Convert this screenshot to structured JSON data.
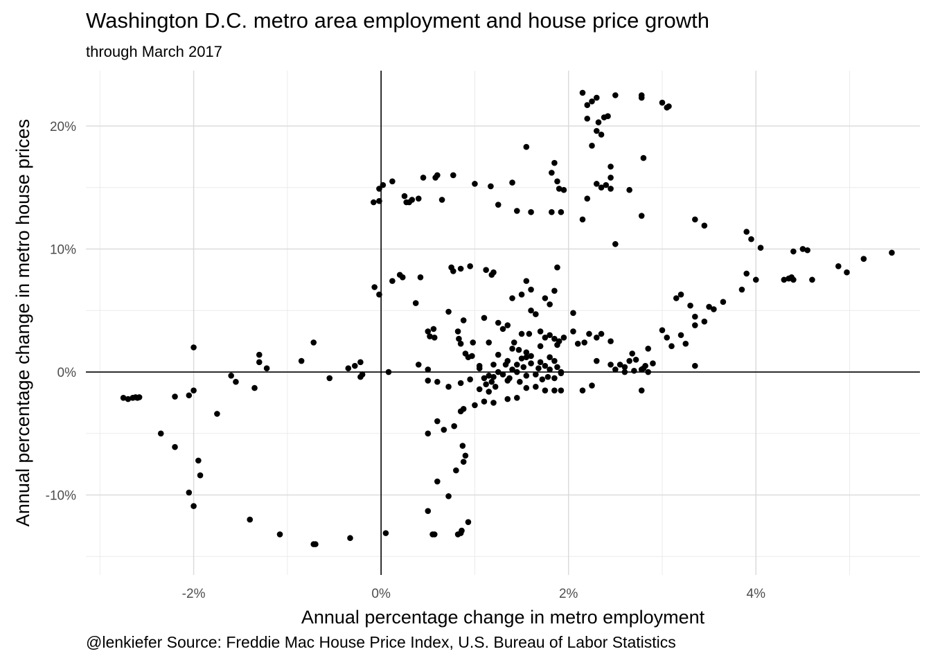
{
  "chart_data": {
    "type": "scatter",
    "title": "Washington D.C. metro area employment and house price growth",
    "subtitle": "through March 2017",
    "caption": "@lenkiefer Source: Freddie Mac House Price Index, U.S. Bureau of Labor Statistics",
    "xlabel": "Annual percentage change in metro employment",
    "ylabel": "Annual percentage change in metro house prices",
    "xlim": [
      -3.15,
      5.75
    ],
    "ylim": [
      -16.5,
      24.5
    ],
    "x_ticks": [
      -2,
      0,
      2,
      4
    ],
    "x_tick_labels": [
      "-2%",
      "0%",
      "2%",
      "4%"
    ],
    "y_ticks": [
      -10,
      0,
      10,
      20
    ],
    "y_tick_labels": [
      "-10%",
      "0%",
      "10%",
      "20%"
    ],
    "grid": true,
    "reference_lines": {
      "x": 0,
      "y": 0
    },
    "point_color": "#000000",
    "series": [
      {
        "points": [
          [
            -2.75,
            -2.1
          ],
          [
            -2.7,
            -2.2
          ],
          [
            -2.65,
            -2.1
          ],
          [
            -2.62,
            -2.05
          ],
          [
            -2.6,
            -2.1
          ],
          [
            -2.58,
            -2.05
          ],
          [
            -2.2,
            -2.0
          ],
          [
            -2.05,
            -1.9
          ],
          [
            -2.0,
            -1.5
          ],
          [
            -2.0,
            2.0
          ],
          [
            -1.75,
            -3.4
          ],
          [
            -2.35,
            -5.0
          ],
          [
            -2.2,
            -6.1
          ],
          [
            -1.95,
            -7.2
          ],
          [
            -1.93,
            -8.4
          ],
          [
            -2.05,
            -9.8
          ],
          [
            -2.0,
            -10.9
          ],
          [
            -1.4,
            -12.0
          ],
          [
            -1.08,
            -13.2
          ],
          [
            -0.72,
            -14.0
          ],
          [
            -0.7,
            -14.0
          ],
          [
            -0.33,
            -13.5
          ],
          [
            0.05,
            -13.1
          ],
          [
            0.55,
            -13.2
          ],
          [
            0.57,
            -13.2
          ],
          [
            0.82,
            -13.2
          ],
          [
            0.85,
            -13.1
          ],
          [
            0.86,
            -12.9
          ],
          [
            0.93,
            -12.2
          ],
          [
            0.5,
            -11.3
          ],
          [
            0.72,
            -10.1
          ],
          [
            0.6,
            -8.9
          ],
          [
            0.8,
            -8.0
          ],
          [
            0.88,
            -7.3
          ],
          [
            0.9,
            -6.8
          ],
          [
            0.87,
            -6.0
          ],
          [
            0.5,
            -5.0
          ],
          [
            0.6,
            -4.0
          ],
          [
            0.67,
            -4.7
          ],
          [
            0.78,
            -4.4
          ],
          [
            0.85,
            -3.2
          ],
          [
            0.88,
            -3.0
          ],
          [
            1.0,
            -2.7
          ],
          [
            1.1,
            -2.4
          ],
          [
            1.2,
            -2.5
          ],
          [
            1.35,
            -2.2
          ],
          [
            1.45,
            -2.1
          ],
          [
            1.55,
            -1.3
          ],
          [
            1.65,
            -1.2
          ],
          [
            1.75,
            -1.5
          ],
          [
            1.85,
            -1.5
          ],
          [
            1.92,
            -1.5
          ],
          [
            2.15,
            -1.5
          ],
          [
            2.25,
            -1.1
          ],
          [
            2.78,
            -1.5
          ],
          [
            -1.6,
            -0.3
          ],
          [
            -1.55,
            -0.8
          ],
          [
            -1.35,
            -1.3
          ],
          [
            -1.3,
            0.8
          ],
          [
            -1.3,
            1.4
          ],
          [
            -1.22,
            0.3
          ],
          [
            -0.85,
            0.9
          ],
          [
            -0.72,
            2.4
          ],
          [
            -0.55,
            -0.5
          ],
          [
            -0.35,
            0.3
          ],
          [
            -0.28,
            0.5
          ],
          [
            -0.22,
            0.8
          ],
          [
            -0.2,
            -0.2
          ],
          [
            -0.22,
            -0.4
          ],
          [
            0.08,
            0.0
          ],
          [
            0.4,
            0.6
          ],
          [
            0.5,
            0.2
          ],
          [
            0.5,
            -0.7
          ],
          [
            0.6,
            -0.8
          ],
          [
            0.72,
            -1.2
          ],
          [
            0.85,
            -0.9
          ],
          [
            0.95,
            -0.6
          ],
          [
            0.5,
            3.3
          ],
          [
            0.52,
            2.9
          ],
          [
            0.57,
            2.8
          ],
          [
            0.56,
            3.5
          ],
          [
            0.72,
            4.9
          ],
          [
            0.82,
            3.3
          ],
          [
            0.83,
            2.7
          ],
          [
            0.85,
            2.3
          ],
          [
            0.88,
            4.2
          ],
          [
            0.9,
            1.5
          ],
          [
            0.93,
            1.2
          ],
          [
            0.97,
            1.3
          ],
          [
            0.98,
            2.4
          ],
          [
            1.1,
            4.4
          ],
          [
            1.15,
            2.4
          ],
          [
            1.25,
            4.0
          ],
          [
            1.3,
            3.5
          ],
          [
            1.35,
            3.8
          ],
          [
            1.42,
            2.4
          ],
          [
            1.47,
            1.8
          ],
          [
            1.5,
            3.1
          ],
          [
            1.55,
            1.6
          ],
          [
            1.58,
            3.1
          ],
          [
            1.65,
            4.7
          ],
          [
            1.7,
            3.3
          ],
          [
            1.75,
            2.8
          ],
          [
            1.8,
            3.0
          ],
          [
            1.85,
            2.7
          ],
          [
            1.88,
            2.2
          ],
          [
            1.9,
            2.5
          ],
          [
            1.95,
            2.8
          ],
          [
            2.05,
            4.8
          ],
          [
            2.05,
            3.3
          ],
          [
            2.1,
            2.3
          ],
          [
            2.17,
            2.4
          ],
          [
            2.22,
            3.1
          ],
          [
            2.3,
            2.8
          ],
          [
            2.35,
            3.1
          ],
          [
            2.45,
            2.5
          ],
          [
            2.3,
            0.9
          ],
          [
            2.45,
            0.6
          ],
          [
            2.55,
            0.6
          ],
          [
            2.6,
            0.4
          ],
          [
            2.65,
            0.9
          ],
          [
            2.68,
            1.5
          ],
          [
            2.72,
            1.0
          ],
          [
            2.78,
            0.2
          ],
          [
            2.82,
            0.5
          ],
          [
            2.85,
            1.9
          ],
          [
            2.9,
            0.7
          ],
          [
            1.05,
            0.3
          ],
          [
            1.1,
            -0.5
          ],
          [
            1.12,
            -1.0
          ],
          [
            1.15,
            -0.3
          ],
          [
            1.18,
            -0.8
          ],
          [
            1.2,
            -0.4
          ],
          [
            1.22,
            -1.2
          ],
          [
            1.25,
            0.0
          ],
          [
            1.3,
            -0.2
          ],
          [
            1.33,
            0.6
          ],
          [
            1.37,
            -0.5
          ],
          [
            1.4,
            0.2
          ],
          [
            1.45,
            0.0
          ],
          [
            1.48,
            -0.8
          ],
          [
            1.52,
            0.4
          ],
          [
            1.55,
            -0.3
          ],
          [
            1.6,
            0.7
          ],
          [
            1.65,
            -0.2
          ],
          [
            1.68,
            0.3
          ],
          [
            1.72,
            -0.6
          ],
          [
            1.75,
            0.5
          ],
          [
            1.78,
            -0.4
          ],
          [
            1.8,
            0.2
          ],
          [
            1.85,
            -0.5
          ],
          [
            1.88,
            0.4
          ],
          [
            1.92,
            -0.1
          ],
          [
            1.05,
            0.5
          ],
          [
            1.2,
            0.6
          ],
          [
            1.35,
            0.9
          ],
          [
            1.5,
            1.1
          ],
          [
            1.6,
            1.3
          ],
          [
            1.7,
            0.8
          ],
          [
            1.8,
            1.2
          ],
          [
            1.85,
            0.9
          ],
          [
            1.92,
            0.0
          ],
          [
            2.5,
            0.2
          ],
          [
            2.6,
            0.0
          ],
          [
            2.7,
            0.1
          ],
          [
            2.8,
            0.3
          ],
          [
            2.85,
            0.0
          ],
          [
            1.25,
            1.4
          ],
          [
            1.4,
            1.9
          ],
          [
            1.45,
            0.6
          ],
          [
            1.55,
            1.2
          ],
          [
            1.7,
            2.1
          ],
          [
            1.35,
            -0.7
          ],
          [
            1.15,
            -1.6
          ],
          [
            1.05,
            -1.4
          ],
          [
            -0.08,
            13.8
          ],
          [
            -0.02,
            13.9
          ],
          [
            -0.02,
            14.9
          ],
          [
            0.02,
            15.2
          ],
          [
            0.12,
            15.5
          ],
          [
            0.25,
            14.3
          ],
          [
            0.27,
            13.8
          ],
          [
            0.3,
            13.8
          ],
          [
            0.33,
            14.0
          ],
          [
            0.4,
            14.1
          ],
          [
            0.45,
            15.8
          ],
          [
            0.58,
            15.8
          ],
          [
            0.6,
            16.0
          ],
          [
            0.65,
            14.0
          ],
          [
            0.77,
            16.0
          ],
          [
            1.0,
            15.3
          ],
          [
            1.17,
            15.1
          ],
          [
            1.25,
            13.6
          ],
          [
            1.4,
            15.4
          ],
          [
            1.6,
            13.0
          ],
          [
            1.45,
            13.1
          ],
          [
            1.82,
            13.0
          ],
          [
            1.55,
            18.3
          ],
          [
            1.82,
            16.2
          ],
          [
            1.85,
            17.0
          ],
          [
            1.88,
            15.5
          ],
          [
            1.9,
            14.9
          ],
          [
            1.95,
            14.8
          ],
          [
            1.92,
            13.0
          ],
          [
            2.15,
            22.7
          ],
          [
            2.2,
            21.7
          ],
          [
            2.25,
            22.0
          ],
          [
            2.3,
            22.3
          ],
          [
            2.2,
            20.6
          ],
          [
            2.32,
            20.3
          ],
          [
            2.38,
            20.7
          ],
          [
            2.42,
            20.8
          ],
          [
            2.3,
            19.6
          ],
          [
            2.35,
            19.3
          ],
          [
            2.25,
            18.4
          ],
          [
            2.2,
            14.1
          ],
          [
            2.15,
            12.4
          ],
          [
            2.3,
            15.3
          ],
          [
            2.35,
            15.0
          ],
          [
            2.4,
            15.2
          ],
          [
            2.45,
            16.7
          ],
          [
            2.45,
            15.8
          ],
          [
            2.45,
            14.9
          ],
          [
            2.5,
            22.5
          ],
          [
            2.5,
            10.4
          ],
          [
            2.65,
            14.8
          ],
          [
            2.78,
            22.3
          ],
          [
            2.78,
            22.5
          ],
          [
            2.8,
            17.4
          ],
          [
            2.78,
            12.7
          ],
          [
            3.0,
            21.9
          ],
          [
            3.05,
            21.5
          ],
          [
            3.07,
            21.6
          ],
          [
            -0.07,
            6.9
          ],
          [
            -0.02,
            6.3
          ],
          [
            0.12,
            7.4
          ],
          [
            0.2,
            7.9
          ],
          [
            0.23,
            7.7
          ],
          [
            0.37,
            5.6
          ],
          [
            0.42,
            7.7
          ],
          [
            0.75,
            8.5
          ],
          [
            0.77,
            8.2
          ],
          [
            0.85,
            8.4
          ],
          [
            0.95,
            8.6
          ],
          [
            1.12,
            8.3
          ],
          [
            1.18,
            7.9
          ],
          [
            1.2,
            8.1
          ],
          [
            1.55,
            7.4
          ],
          [
            1.6,
            6.7
          ],
          [
            1.5,
            6.3
          ],
          [
            1.4,
            6.0
          ],
          [
            1.6,
            5.0
          ],
          [
            1.75,
            6.0
          ],
          [
            1.8,
            5.5
          ],
          [
            1.85,
            6.6
          ],
          [
            1.88,
            8.5
          ],
          [
            3.0,
            3.4
          ],
          [
            3.05,
            2.8
          ],
          [
            3.1,
            2.1
          ],
          [
            3.2,
            3.0
          ],
          [
            3.25,
            2.3
          ],
          [
            3.15,
            6.0
          ],
          [
            3.2,
            6.3
          ],
          [
            3.3,
            5.4
          ],
          [
            3.35,
            3.8
          ],
          [
            3.35,
            4.5
          ],
          [
            3.35,
            0.5
          ],
          [
            3.45,
            4.1
          ],
          [
            3.5,
            5.3
          ],
          [
            3.55,
            5.1
          ],
          [
            3.65,
            5.7
          ],
          [
            3.35,
            12.4
          ],
          [
            3.45,
            11.9
          ],
          [
            3.85,
            6.7
          ],
          [
            3.9,
            8.0
          ],
          [
            4.0,
            7.5
          ],
          [
            3.9,
            11.4
          ],
          [
            3.95,
            10.8
          ],
          [
            4.05,
            10.1
          ],
          [
            4.3,
            7.5
          ],
          [
            4.35,
            7.6
          ],
          [
            4.38,
            7.7
          ],
          [
            4.4,
            9.8
          ],
          [
            4.4,
            7.5
          ],
          [
            4.5,
            10.0
          ],
          [
            4.55,
            9.9
          ],
          [
            4.6,
            7.5
          ],
          [
            4.88,
            8.6
          ],
          [
            4.97,
            8.1
          ],
          [
            5.15,
            9.2
          ],
          [
            5.45,
            9.7
          ]
        ]
      }
    ]
  }
}
